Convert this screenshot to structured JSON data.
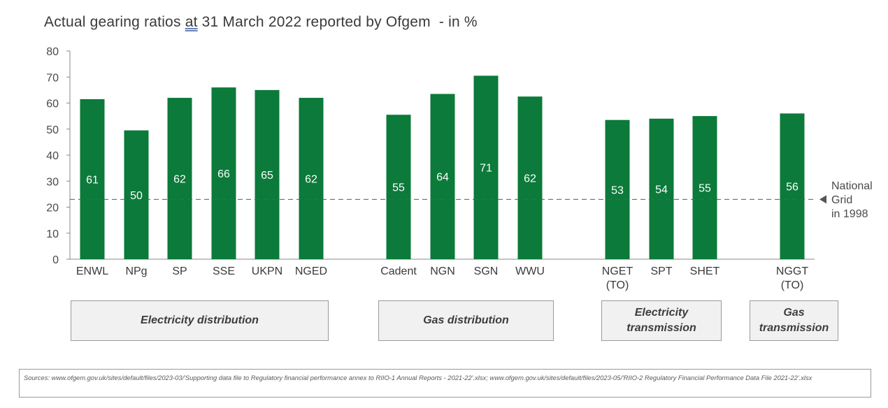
{
  "title": {
    "before": "Actual gearing ratios ",
    "underlined": "at",
    "after": " 31 March 2022 reported by Ofgem  - in %"
  },
  "chart_data": {
    "type": "bar",
    "bar_color": "#0b7a3a",
    "ylim": [
      0,
      80
    ],
    "yticks": [
      0,
      10,
      20,
      30,
      40,
      50,
      60,
      70,
      80
    ],
    "categories": [
      "ENWL",
      "NPg",
      "SP",
      "SSE",
      "UKPN",
      "NGED",
      "Cadent",
      "NGN",
      "SGN",
      "WWU",
      "NGET\n(TO)",
      "SPT",
      "SHET",
      "NGGT\n(TO)"
    ],
    "values": [
      61.5,
      49.5,
      62,
      66,
      65,
      62,
      55.5,
      63.5,
      70.5,
      62.5,
      53.5,
      54,
      55,
      56
    ],
    "data_labels": [
      "61",
      "50",
      "62",
      "66",
      "65",
      "62",
      "55",
      "64",
      "71",
      "62",
      "53",
      "54",
      "55",
      "56"
    ],
    "reference_line": {
      "value": 23,
      "label_lines": [
        "National",
        "Grid",
        "in 1998"
      ]
    },
    "groups": [
      {
        "label_lines": [
          "Electricity distribution"
        ]
      },
      {
        "label_lines": [
          "Gas distribution"
        ]
      },
      {
        "label_lines": [
          "Electricity",
          "transmission"
        ]
      },
      {
        "label_lines": [
          "Gas",
          "transmission"
        ]
      }
    ]
  },
  "sources": "Sources: www.ofgem.gov.uk/sites/default/files/2023-03/'Supporting data file to Regulatory financial performance annex to RIIO-1 Annual Reports - 2021-22'.xlsx; www.ofgem.gov.uk/sites/default/files/2023-05/'RIIO-2 Regulatory Financial Performance Data File 2021-22'.xlsx"
}
